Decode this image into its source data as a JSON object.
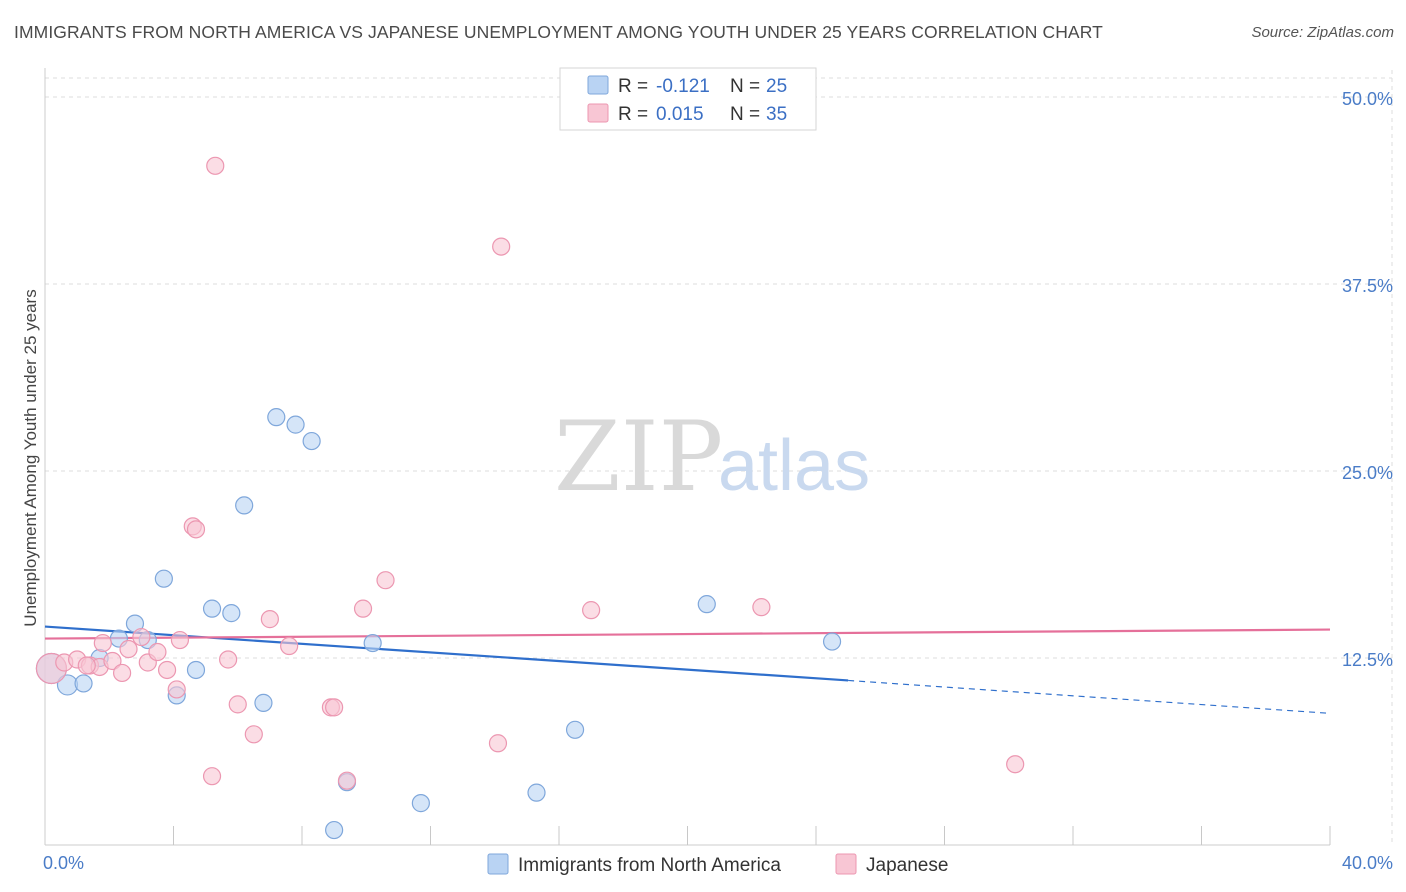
{
  "header": {
    "title": "IMMIGRANTS FROM NORTH AMERICA VS JAPANESE UNEMPLOYMENT AMONG YOUTH UNDER 25 YEARS CORRELATION CHART",
    "source": "Source: ZipAtlas.com"
  },
  "watermark": {
    "zip": "ZIP",
    "atlas": "atlas"
  },
  "legend": {
    "rows": [
      {
        "r_label": "R =",
        "r_value": "-0.121",
        "n_label": "N =",
        "n_value": "25",
        "color": "#a9c8f0"
      },
      {
        "r_label": "R =",
        "r_value": "0.015",
        "n_label": "N =",
        "n_value": "35",
        "color": "#f5b8cb"
      }
    ]
  },
  "colors": {
    "blue_fill": "#b9d3f3",
    "blue_stroke": "#7fa7db",
    "blue_line": "#2f6fcc",
    "pink_fill": "#f8c6d4",
    "pink_stroke": "#ec97b1",
    "pink_line": "#e5709a",
    "grid": "#dddddd",
    "axis_tick": "#4a7cc7"
  },
  "chart_data": {
    "type": "scatter",
    "title": "IMMIGRANTS FROM NORTH AMERICA VS JAPANESE UNEMPLOYMENT AMONG YOUTH UNDER 25 YEARS CORRELATION CHART",
    "xlabel": "",
    "ylabel": "Unemployment Among Youth under 25 years",
    "xlim": [
      0,
      40
    ],
    "ylim": [
      0,
      50
    ],
    "x_tick_labels": [
      "0.0%",
      "40.0%"
    ],
    "y_ticks": [
      12.5,
      25.0,
      37.5,
      50.0
    ],
    "y_tick_labels": [
      "12.5%",
      "25.0%",
      "37.5%",
      "50.0%"
    ],
    "grid": true,
    "legend_placement": "top-center",
    "series": [
      {
        "name": "Immigrants from North America",
        "points": [
          [
            0.2,
            11.8
          ],
          [
            0.7,
            10.7
          ],
          [
            1.2,
            10.8
          ],
          [
            1.7,
            12.5
          ],
          [
            2.3,
            13.8
          ],
          [
            2.8,
            14.8
          ],
          [
            3.2,
            13.7
          ],
          [
            3.7,
            17.8
          ],
          [
            4.1,
            10.0
          ],
          [
            4.7,
            11.7
          ],
          [
            5.2,
            15.8
          ],
          [
            5.8,
            15.5
          ],
          [
            6.2,
            22.7
          ],
          [
            6.8,
            9.5
          ],
          [
            7.2,
            28.6
          ],
          [
            7.8,
            28.1
          ],
          [
            8.3,
            27.0
          ],
          [
            9.0,
            1.0
          ],
          [
            9.4,
            4.2
          ],
          [
            10.2,
            13.5
          ],
          [
            11.7,
            2.8
          ],
          [
            15.3,
            3.5
          ],
          [
            16.5,
            7.7
          ],
          [
            20.6,
            16.1
          ],
          [
            24.5,
            13.6
          ]
        ],
        "sizes": [
          3,
          2,
          1,
          1,
          1,
          1,
          1,
          1,
          1,
          1,
          1,
          1,
          1,
          1,
          1,
          1,
          1,
          1,
          1,
          1,
          1,
          1,
          1,
          1,
          1
        ],
        "trend": {
          "x0": 0.0,
          "y0": 14.6,
          "x1": 25.0,
          "y1": 11.0,
          "dash_to_x": 40.0,
          "dash_to_y": 8.8
        }
      },
      {
        "name": "Japanese",
        "points": [
          [
            0.2,
            11.8
          ],
          [
            0.6,
            12.2
          ],
          [
            1.0,
            12.4
          ],
          [
            1.4,
            12.0
          ],
          [
            1.7,
            11.9
          ],
          [
            1.8,
            13.5
          ],
          [
            2.1,
            12.3
          ],
          [
            2.4,
            11.5
          ],
          [
            2.6,
            13.1
          ],
          [
            3.0,
            13.9
          ],
          [
            3.2,
            12.2
          ],
          [
            3.5,
            12.9
          ],
          [
            3.8,
            11.7
          ],
          [
            4.1,
            10.4
          ],
          [
            4.2,
            13.7
          ],
          [
            4.6,
            21.3
          ],
          [
            4.7,
            21.1
          ],
          [
            5.2,
            4.6
          ],
          [
            5.3,
            45.4
          ],
          [
            5.7,
            12.4
          ],
          [
            6.0,
            9.4
          ],
          [
            6.5,
            7.4
          ],
          [
            7.0,
            15.1
          ],
          [
            7.6,
            13.3
          ],
          [
            8.9,
            9.2
          ],
          [
            9.0,
            9.2
          ],
          [
            9.4,
            4.3
          ],
          [
            9.9,
            15.8
          ],
          [
            10.6,
            17.7
          ],
          [
            14.1,
            6.8
          ],
          [
            14.2,
            40.0
          ],
          [
            17.0,
            15.7
          ],
          [
            22.3,
            15.9
          ],
          [
            30.2,
            5.4
          ],
          [
            1.3,
            12.0
          ]
        ],
        "sizes": [
          3,
          1,
          1,
          1,
          1,
          1,
          1,
          1,
          1,
          1,
          1,
          1,
          1,
          1,
          1,
          1,
          1,
          1,
          1,
          1,
          1,
          1,
          1,
          1,
          1,
          1,
          1,
          1,
          1,
          1,
          1,
          1,
          1,
          1,
          1
        ],
        "trend": {
          "x0": 0.0,
          "y0": 13.8,
          "x1": 40.0,
          "y1": 14.4
        }
      }
    ]
  }
}
